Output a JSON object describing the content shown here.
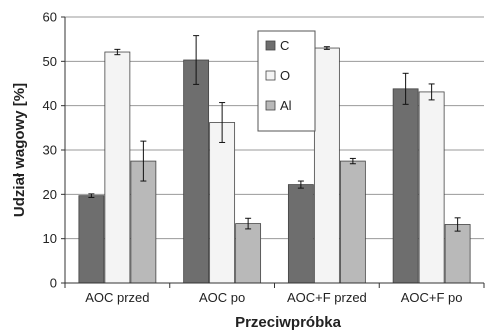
{
  "chart_data": {
    "type": "bar",
    "xlabel": "Przeciwpróbka",
    "ylabel": "Udział wagowy [%]",
    "ylim": [
      0,
      60
    ],
    "yticks": [
      0,
      10,
      20,
      30,
      40,
      50,
      60
    ],
    "grid": "horizontal",
    "legend_position": "top-center",
    "categories": [
      "AOC przed",
      "AOC po",
      "AOC+F przed",
      "AOC+F po"
    ],
    "series": [
      {
        "name": "C",
        "color": "#6e6e6e",
        "values": [
          19.7,
          50.3,
          22.2,
          43.8
        ],
        "errors": [
          0.4,
          5.5,
          0.8,
          3.5
        ]
      },
      {
        "name": "O",
        "color": "#f4f4f4",
        "values": [
          52.1,
          36.2,
          53.0,
          43.1
        ],
        "errors": [
          0.6,
          4.5,
          0.3,
          1.8
        ]
      },
      {
        "name": "Al",
        "color": "#b9b9b9",
        "values": [
          27.5,
          13.4,
          27.5,
          13.2
        ],
        "errors": [
          4.5,
          1.2,
          0.6,
          1.5
        ]
      }
    ]
  }
}
